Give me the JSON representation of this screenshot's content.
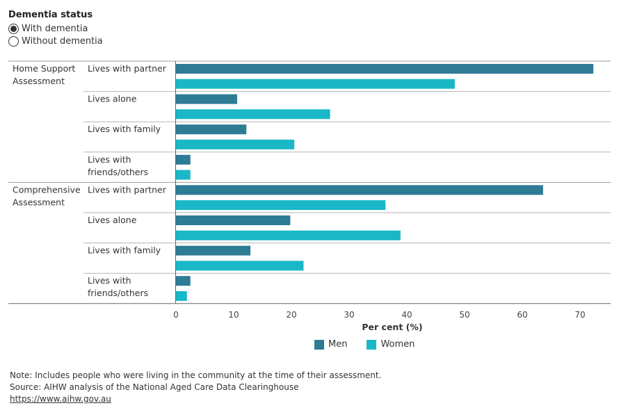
{
  "filter": {
    "title": "Dementia status",
    "options": [
      {
        "label": "With dementia",
        "selected": true
      },
      {
        "label": "Without dementia",
        "selected": false
      }
    ]
  },
  "chart_data": {
    "type": "bar",
    "orientation": "horizontal",
    "xlabel": "Per cent (%)",
    "xlim": [
      0,
      75
    ],
    "xticks": [
      0,
      10,
      20,
      30,
      40,
      50,
      60,
      70
    ],
    "grid": false,
    "legend_position": "bottom",
    "series": [
      {
        "name": "Men",
        "color": "#2e7b96"
      },
      {
        "name": "Women",
        "color": "#1ab8c6"
      }
    ],
    "groups": [
      {
        "label": "Home Support Assessment",
        "label_lines": [
          "Home Support",
          "Assessment"
        ],
        "categories": [
          {
            "label_lines": [
              "Lives with partner"
            ],
            "values": [
              72.3,
              48.3
            ]
          },
          {
            "label_lines": [
              "Lives alone"
            ],
            "values": [
              10.6,
              26.7
            ]
          },
          {
            "label_lines": [
              "Lives with family"
            ],
            "values": [
              12.2,
              20.5
            ]
          },
          {
            "label_lines": [
              "Lives with",
              "friends/others"
            ],
            "values": [
              2.5,
              2.5
            ]
          }
        ]
      },
      {
        "label": "Comprehensive Assessment",
        "label_lines": [
          "Comprehensive",
          "Assessment"
        ],
        "categories": [
          {
            "label_lines": [
              "Lives with partner"
            ],
            "values": [
              63.6,
              36.3
            ]
          },
          {
            "label_lines": [
              "Lives alone"
            ],
            "values": [
              19.8,
              38.9
            ]
          },
          {
            "label_lines": [
              "Lives with family"
            ],
            "values": [
              12.9,
              22.1
            ]
          },
          {
            "label_lines": [
              "Lives with",
              "friends/others"
            ],
            "values": [
              2.5,
              1.9
            ]
          }
        ]
      }
    ]
  },
  "legend": {
    "items": [
      {
        "label": "Men",
        "color": "#2e7b96"
      },
      {
        "label": "Women",
        "color": "#1ab8c6"
      }
    ]
  },
  "footer": {
    "note": "Note: Includes people who were living in the community at the time of their assessment.",
    "source": "Source: AIHW analysis of the National Aged Care Data Clearinghouse",
    "link": "https://www.aihw.gov.au"
  }
}
